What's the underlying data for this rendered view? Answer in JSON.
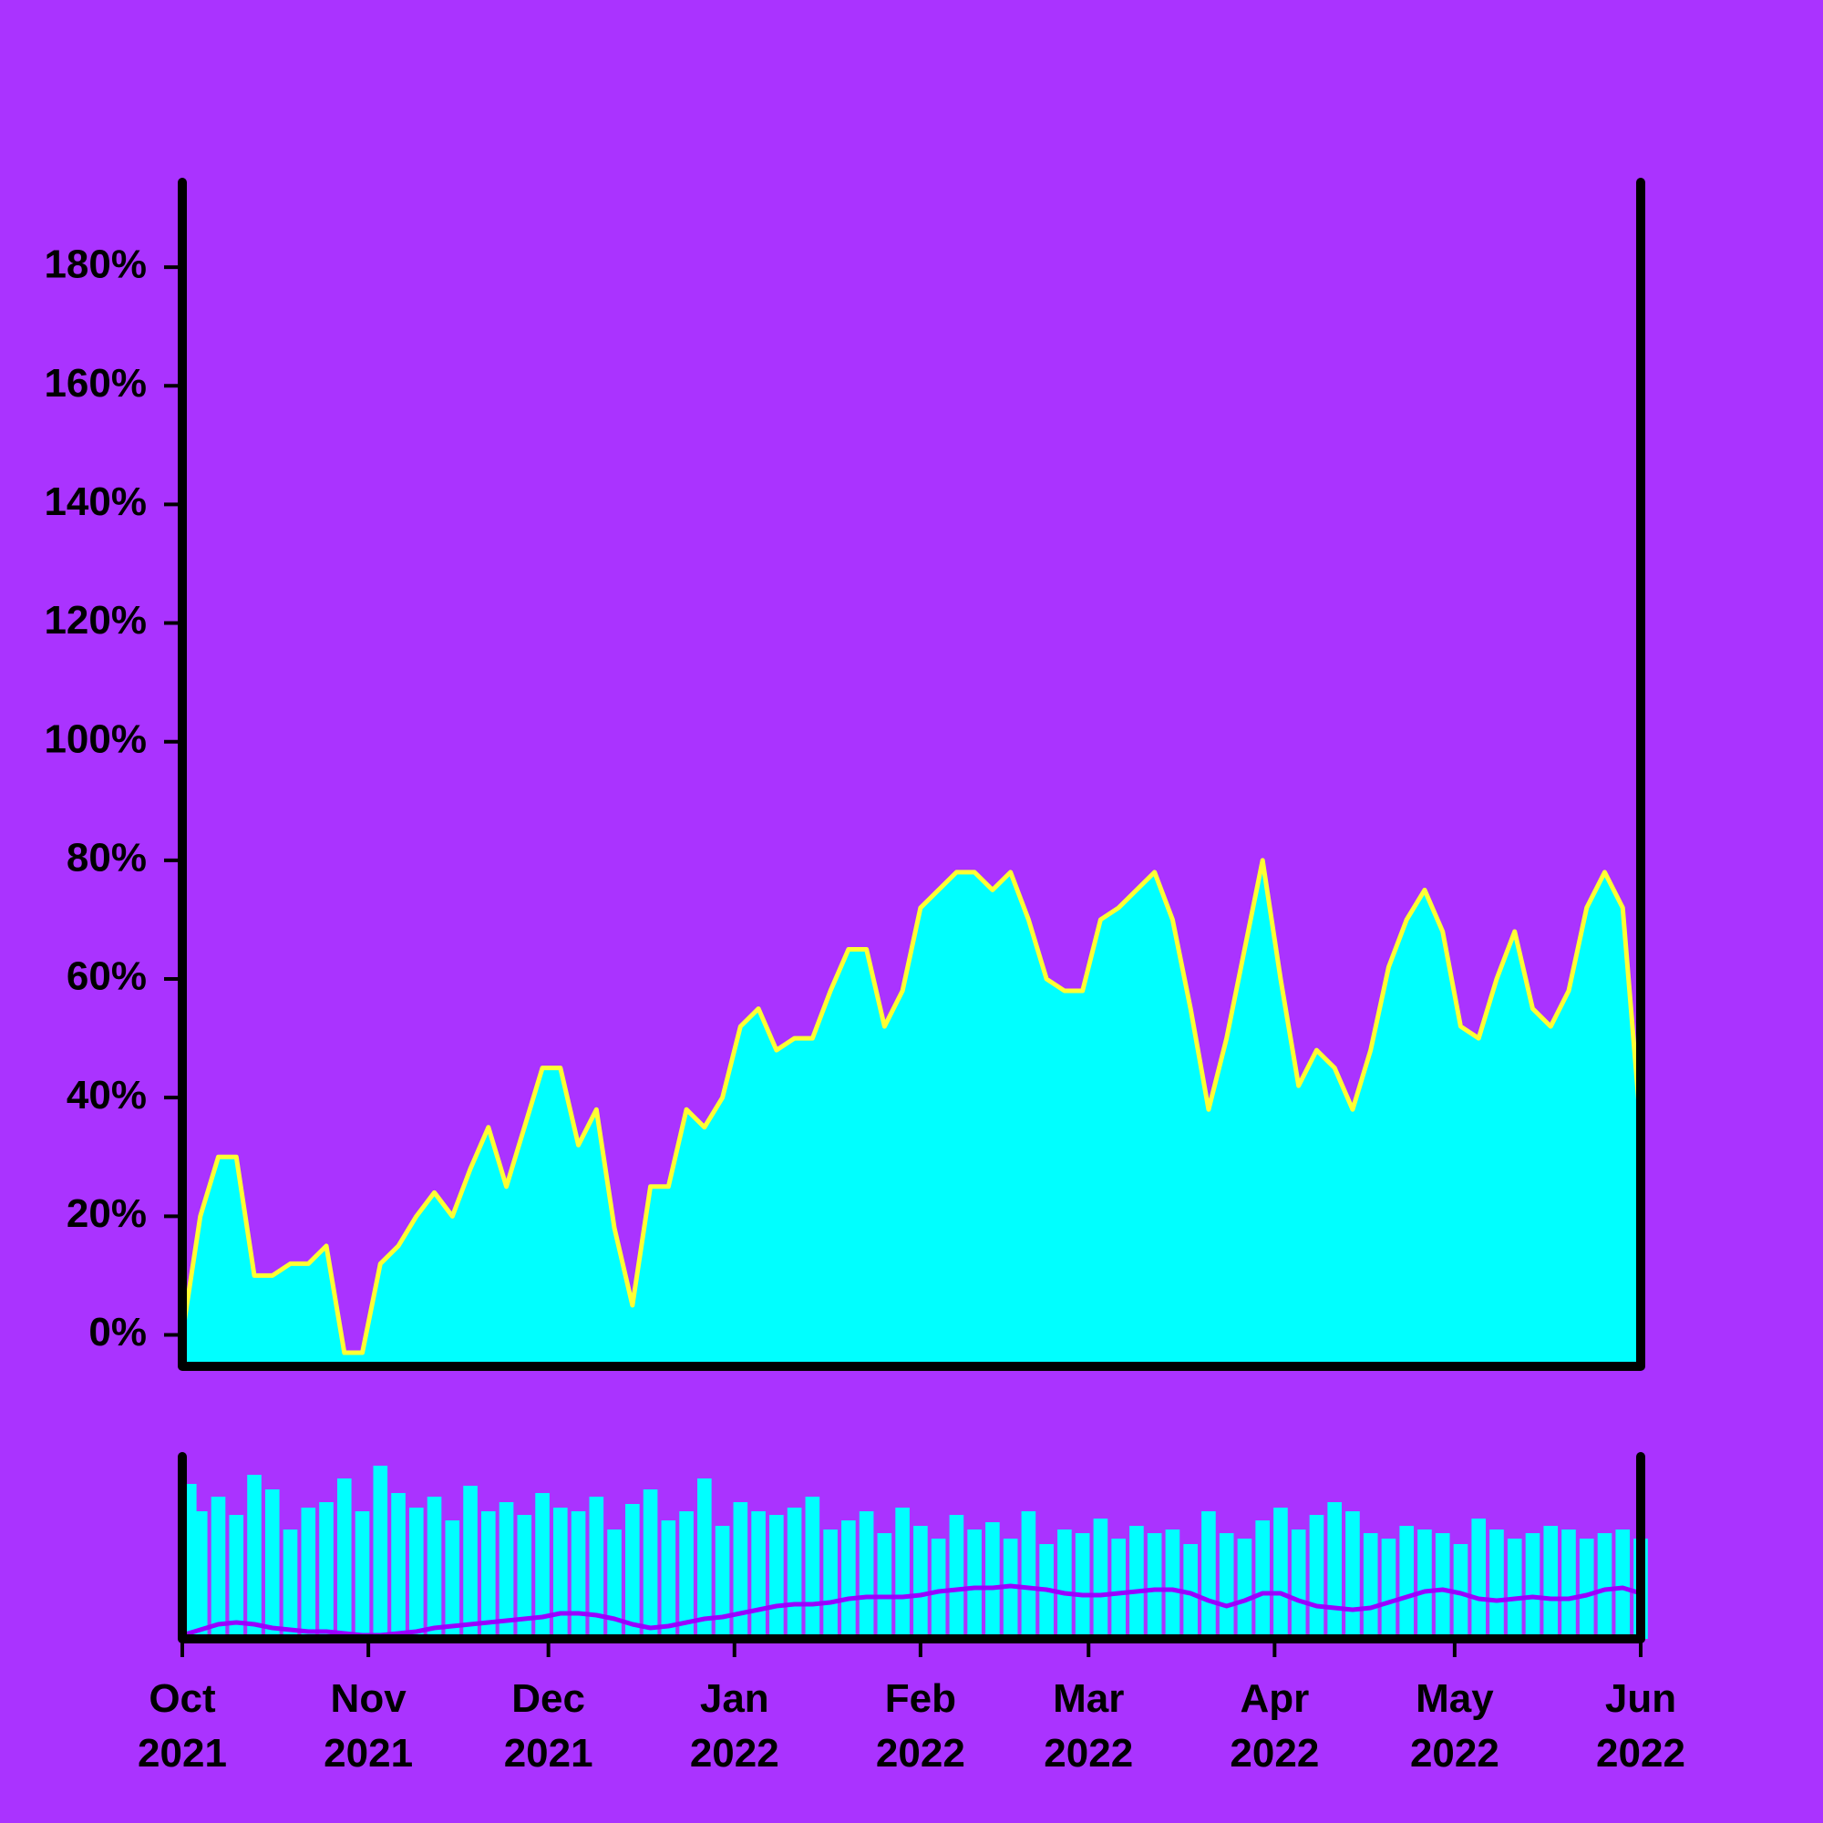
{
  "chart_data": [
    {
      "type": "area",
      "x": [
        0,
        3,
        6,
        9,
        12,
        15,
        18,
        21,
        24,
        27,
        30,
        33,
        36,
        39,
        42,
        45,
        48,
        51,
        54,
        57,
        60,
        63,
        66,
        69,
        72,
        75,
        78,
        81,
        84,
        87,
        90,
        93,
        96,
        99,
        102,
        105,
        108,
        111,
        114,
        117,
        120,
        123,
        126,
        129,
        132,
        135,
        138,
        141,
        144,
        147,
        150,
        153,
        156,
        159,
        162,
        165,
        168,
        171,
        174,
        177,
        180,
        183,
        186,
        189,
        192,
        195,
        198,
        201,
        204,
        207,
        210,
        213,
        216,
        219,
        222,
        225,
        228,
        231,
        234,
        237,
        240,
        243
      ],
      "values": [
        0,
        20,
        30,
        30,
        10,
        10,
        12,
        12,
        15,
        -3,
        -3,
        12,
        15,
        20,
        24,
        20,
        28,
        35,
        25,
        35,
        45,
        45,
        32,
        38,
        18,
        5,
        25,
        25,
        38,
        35,
        40,
        52,
        55,
        48,
        50,
        50,
        58,
        65,
        65,
        52,
        58,
        72,
        75,
        78,
        78,
        75,
        78,
        70,
        60,
        58,
        58,
        70,
        72,
        75,
        78,
        70,
        55,
        38,
        50,
        65,
        80,
        60,
        42,
        48,
        45,
        38,
        48,
        62,
        70,
        75,
        68,
        52,
        50,
        60,
        68,
        55,
        52,
        58,
        72,
        78,
        72,
        35
      ],
      "xlim": [
        0,
        243
      ],
      "ylim": [
        -5.3,
        194.3
      ],
      "yticks": [
        {
          "value": 0,
          "label": "0%"
        },
        {
          "value": 20,
          "label": "20%"
        },
        {
          "value": 40,
          "label": "40%"
        },
        {
          "value": 60,
          "label": "60%"
        },
        {
          "value": 80,
          "label": "80%"
        },
        {
          "value": 100,
          "label": "100%"
        },
        {
          "value": 120,
          "label": "120%"
        },
        {
          "value": 140,
          "label": "140%"
        },
        {
          "value": 160,
          "label": "160%"
        },
        {
          "value": 180,
          "label": "180%"
        }
      ],
      "color": "#00ffff",
      "line_color": "#ffff33"
    },
    {
      "type": "bar",
      "x": [
        0,
        3,
        6,
        9,
        12,
        15,
        18,
        21,
        24,
        27,
        30,
        33,
        36,
        39,
        42,
        45,
        48,
        51,
        54,
        57,
        60,
        63,
        66,
        69,
        72,
        75,
        78,
        81,
        84,
        87,
        90,
        93,
        96,
        99,
        102,
        105,
        108,
        111,
        114,
        117,
        120,
        123,
        126,
        129,
        132,
        135,
        138,
        141,
        144,
        147,
        150,
        153,
        156,
        159,
        162,
        165,
        168,
        171,
        174,
        177,
        180,
        183,
        186,
        189,
        192,
        195,
        198,
        201,
        204,
        207,
        210,
        213,
        216,
        219,
        222,
        225,
        228,
        231,
        234,
        237,
        240,
        243
      ],
      "values": [
        85,
        70,
        78,
        68,
        90,
        82,
        60,
        72,
        75,
        88,
        70,
        95,
        80,
        72,
        78,
        65,
        84,
        70,
        75,
        68,
        80,
        72,
        70,
        78,
        60,
        74,
        82,
        65,
        70,
        88,
        62,
        75,
        70,
        68,
        72,
        78,
        60,
        65,
        70,
        58,
        72,
        62,
        55,
        68,
        60,
        64,
        55,
        70,
        52,
        60,
        58,
        66,
        55,
        62,
        58,
        60,
        52,
        70,
        58,
        55,
        65,
        72,
        60,
        68,
        75,
        70,
        58,
        55,
        62,
        60,
        58,
        52,
        66,
        60,
        55,
        58,
        62,
        60,
        55,
        58,
        60,
        55
      ],
      "line_values": [
        2,
        5,
        8,
        9,
        8,
        6,
        5,
        4,
        4,
        3,
        2,
        2,
        3,
        4,
        6,
        7,
        8,
        9,
        10,
        11,
        12,
        14,
        14,
        13,
        11,
        8,
        6,
        7,
        9,
        11,
        12,
        14,
        16,
        18,
        19,
        19,
        20,
        22,
        23,
        23,
        23,
        24,
        26,
        27,
        28,
        28,
        29,
        28,
        27,
        25,
        24,
        24,
        25,
        26,
        27,
        27,
        25,
        21,
        18,
        21,
        25,
        25,
        21,
        18,
        17,
        16,
        17,
        20,
        23,
        26,
        27,
        25,
        22,
        21,
        22,
        23,
        22,
        22,
        24,
        27,
        28,
        25
      ],
      "xlim": [
        0,
        243
      ],
      "ylim": [
        0,
        100
      ],
      "xticks": [
        {
          "value": 0,
          "label": [
            "Oct",
            "2021"
          ]
        },
        {
          "value": 31,
          "label": [
            "Nov",
            "2021"
          ]
        },
        {
          "value": 61,
          "label": [
            "Dec",
            "2021"
          ]
        },
        {
          "value": 92,
          "label": [
            "Jan",
            "2022"
          ]
        },
        {
          "value": 123,
          "label": [
            "Feb",
            "2022"
          ]
        },
        {
          "value": 151,
          "label": [
            "Mar",
            "2022"
          ]
        },
        {
          "value": 182,
          "label": [
            "Apr",
            "2022"
          ]
        },
        {
          "value": 212,
          "label": [
            "May",
            "2022"
          ]
        },
        {
          "value": 243,
          "label": [
            "Jun",
            "2022"
          ]
        }
      ],
      "color": "#00ffff",
      "line_color": "#9900ff"
    }
  ]
}
